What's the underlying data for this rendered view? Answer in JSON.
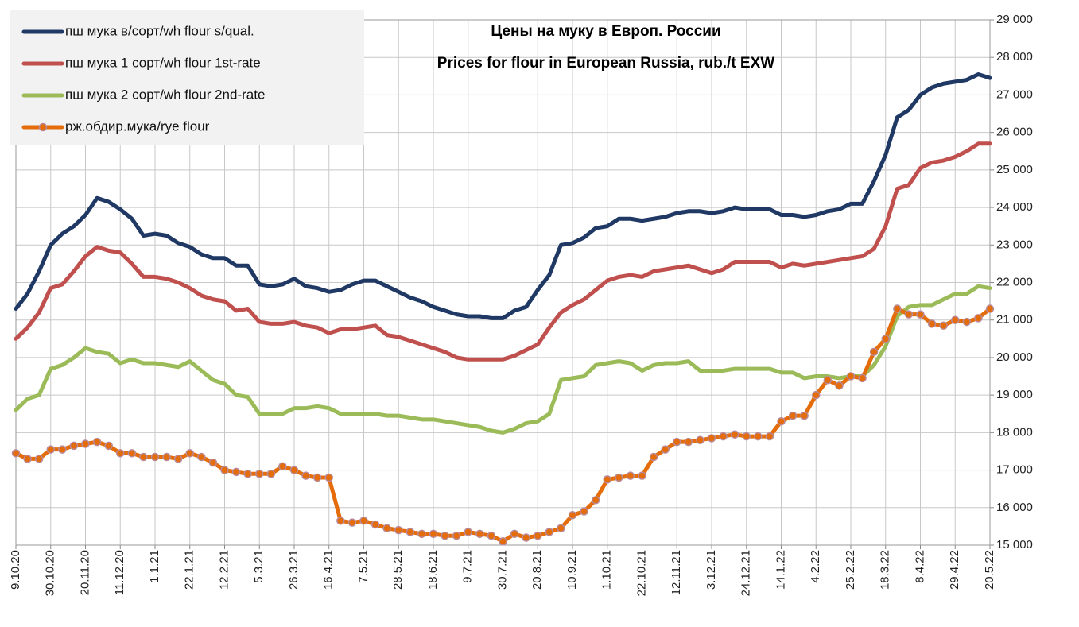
{
  "chart_data": {
    "type": "line",
    "title": "Цены на муку в Европ. России",
    "subtitle": "Prices for flour in European Russia, rub./t EXW",
    "categories": [
      "9.10.20",
      null,
      null,
      "30.10.20",
      null,
      null,
      "20.11.20",
      null,
      null,
      "11.12.20",
      null,
      null,
      "1.1.21",
      null,
      null,
      "22.1.21",
      null,
      null,
      "12.2.21",
      null,
      null,
      "5.3.21",
      null,
      null,
      "26.3.21",
      null,
      null,
      "16.4.21",
      null,
      null,
      "7.5.21",
      null,
      null,
      "28.5.21",
      null,
      null,
      "18.6.21",
      null,
      null,
      "9.7.21",
      null,
      null,
      "30.7.21",
      null,
      null,
      "20.8.21",
      null,
      null,
      "10.9.21",
      null,
      null,
      "1.10.21",
      null,
      null,
      "22.10.21",
      null,
      null,
      "12.11.21",
      null,
      null,
      "3.12.21",
      null,
      null,
      "24.12.21",
      null,
      null,
      "14.1.22",
      null,
      null,
      "4.2.22",
      null,
      null,
      "25.2.22",
      null,
      null,
      "18.3.22",
      null,
      null,
      "8.4.22",
      null,
      null,
      "29.4.22",
      null,
      null,
      "20.5.22"
    ],
    "series": [
      {
        "name": "пш мука  в/сорт/wh  flour s/qual.",
        "color": "#1f3864",
        "marker": false,
        "values": [
          21300,
          21700,
          22300,
          23000,
          23300,
          23500,
          23800,
          24250,
          24150,
          23950,
          23700,
          23250,
          23300,
          23250,
          23050,
          22950,
          22750,
          22650,
          22650,
          22450,
          22450,
          21950,
          21900,
          21950,
          22100,
          21900,
          21850,
          21750,
          21800,
          21950,
          22050,
          22050,
          21900,
          21750,
          21600,
          21500,
          21350,
          21250,
          21150,
          21100,
          21100,
          21050,
          21050,
          21250,
          21350,
          21800,
          22200,
          23000,
          23050,
          23200,
          23450,
          23500,
          23700,
          23700,
          23650,
          23700,
          23750,
          23850,
          23900,
          23900,
          23850,
          23900,
          24000,
          23950,
          23950,
          23950,
          23800,
          23800,
          23750,
          23800,
          23900,
          23950,
          24100,
          24100,
          24700,
          25400,
          26400,
          26600,
          27000,
          27200,
          27300,
          27350,
          27400,
          27550,
          27450
        ]
      },
      {
        "name": "пш мука  1 сорт/wh  flour  1st-rate",
        "color": "#c0504d",
        "marker": false,
        "values": [
          20500,
          20800,
          21200,
          21850,
          21950,
          22300,
          22700,
          22950,
          22850,
          22800,
          22500,
          22150,
          22150,
          22100,
          22000,
          21850,
          21650,
          21550,
          21500,
          21250,
          21300,
          20950,
          20900,
          20900,
          20950,
          20850,
          20800,
          20650,
          20750,
          20750,
          20800,
          20850,
          20600,
          20550,
          20450,
          20350,
          20250,
          20150,
          20000,
          19950,
          19950,
          19950,
          19950,
          20050,
          20200,
          20350,
          20800,
          21200,
          21400,
          21550,
          21800,
          22050,
          22150,
          22200,
          22150,
          22300,
          22350,
          22400,
          22450,
          22350,
          22250,
          22350,
          22550,
          22550,
          22550,
          22550,
          22400,
          22500,
          22450,
          22500,
          22550,
          22600,
          22650,
          22700,
          22900,
          23500,
          24500,
          24600,
          25050,
          25200,
          25250,
          25350,
          25500,
          25700,
          25700
        ]
      },
      {
        "name": "пш мука  2 сорт/wh  flour  2nd-rate",
        "color": "#9bbb59",
        "marker": false,
        "values": [
          18600,
          18900,
          19000,
          19700,
          19800,
          20000,
          20250,
          20150,
          20100,
          19850,
          19950,
          19850,
          19850,
          19800,
          19750,
          19900,
          19650,
          19400,
          19300,
          19000,
          18950,
          18500,
          18500,
          18500,
          18650,
          18650,
          18700,
          18650,
          18500,
          18500,
          18500,
          18500,
          18450,
          18450,
          18400,
          18350,
          18350,
          18300,
          18250,
          18200,
          18150,
          18050,
          18000,
          18100,
          18250,
          18300,
          18500,
          19400,
          19450,
          19500,
          19800,
          19850,
          19900,
          19850,
          19650,
          19800,
          19850,
          19850,
          19900,
          19650,
          19650,
          19650,
          19700,
          19700,
          19700,
          19700,
          19600,
          19600,
          19450,
          19500,
          19500,
          19450,
          19500,
          19500,
          19800,
          20300,
          21100,
          21350,
          21400,
          21400,
          21550,
          21700,
          21700,
          21900,
          21850
        ]
      },
      {
        "name": "рж.обдир.мука/rye  flour",
        "color": "#e46c0a",
        "marker": true,
        "values": [
          17450,
          17300,
          17300,
          17550,
          17550,
          17650,
          17700,
          17750,
          17650,
          17450,
          17450,
          17350,
          17350,
          17350,
          17300,
          17450,
          17350,
          17200,
          17000,
          16950,
          16900,
          16900,
          16900,
          17100,
          17000,
          16850,
          16800,
          16800,
          15650,
          15600,
          15650,
          15550,
          15450,
          15400,
          15350,
          15300,
          15300,
          15250,
          15250,
          15350,
          15300,
          15250,
          15100,
          15300,
          15200,
          15250,
          15350,
          15450,
          15800,
          15900,
          16200,
          16750,
          16800,
          16850,
          16850,
          17350,
          17550,
          17750,
          17750,
          17800,
          17850,
          17900,
          17950,
          17900,
          17900,
          17900,
          18300,
          18450,
          18450,
          19000,
          19400,
          19250,
          19500,
          19450,
          20150,
          20500,
          21300,
          21150,
          21150,
          20900,
          20850,
          21000,
          20950,
          21050,
          21300
        ]
      }
    ],
    "ylim": [
      15000,
      29000
    ],
    "yticks": [
      {
        "value": 15000,
        "label": "15 000"
      },
      {
        "value": 16000,
        "label": "16 000"
      },
      {
        "value": 17000,
        "label": "17 000"
      },
      {
        "value": 18000,
        "label": "18 000"
      },
      {
        "value": 19000,
        "label": "19 000"
      },
      {
        "value": 20000,
        "label": "20 000"
      },
      {
        "value": 21000,
        "label": "21 000"
      },
      {
        "value": 22000,
        "label": "22 000"
      },
      {
        "value": 23000,
        "label": "23 000"
      },
      {
        "value": 24000,
        "label": "24 000"
      },
      {
        "value": 25000,
        "label": "25 000"
      },
      {
        "value": 26000,
        "label": "26 000"
      },
      {
        "value": 27000,
        "label": "27 000"
      },
      {
        "value": 28000,
        "label": "28 000"
      },
      {
        "value": 29000,
        "label": "29 000"
      }
    ],
    "grid": true,
    "legend": "top-left"
  }
}
